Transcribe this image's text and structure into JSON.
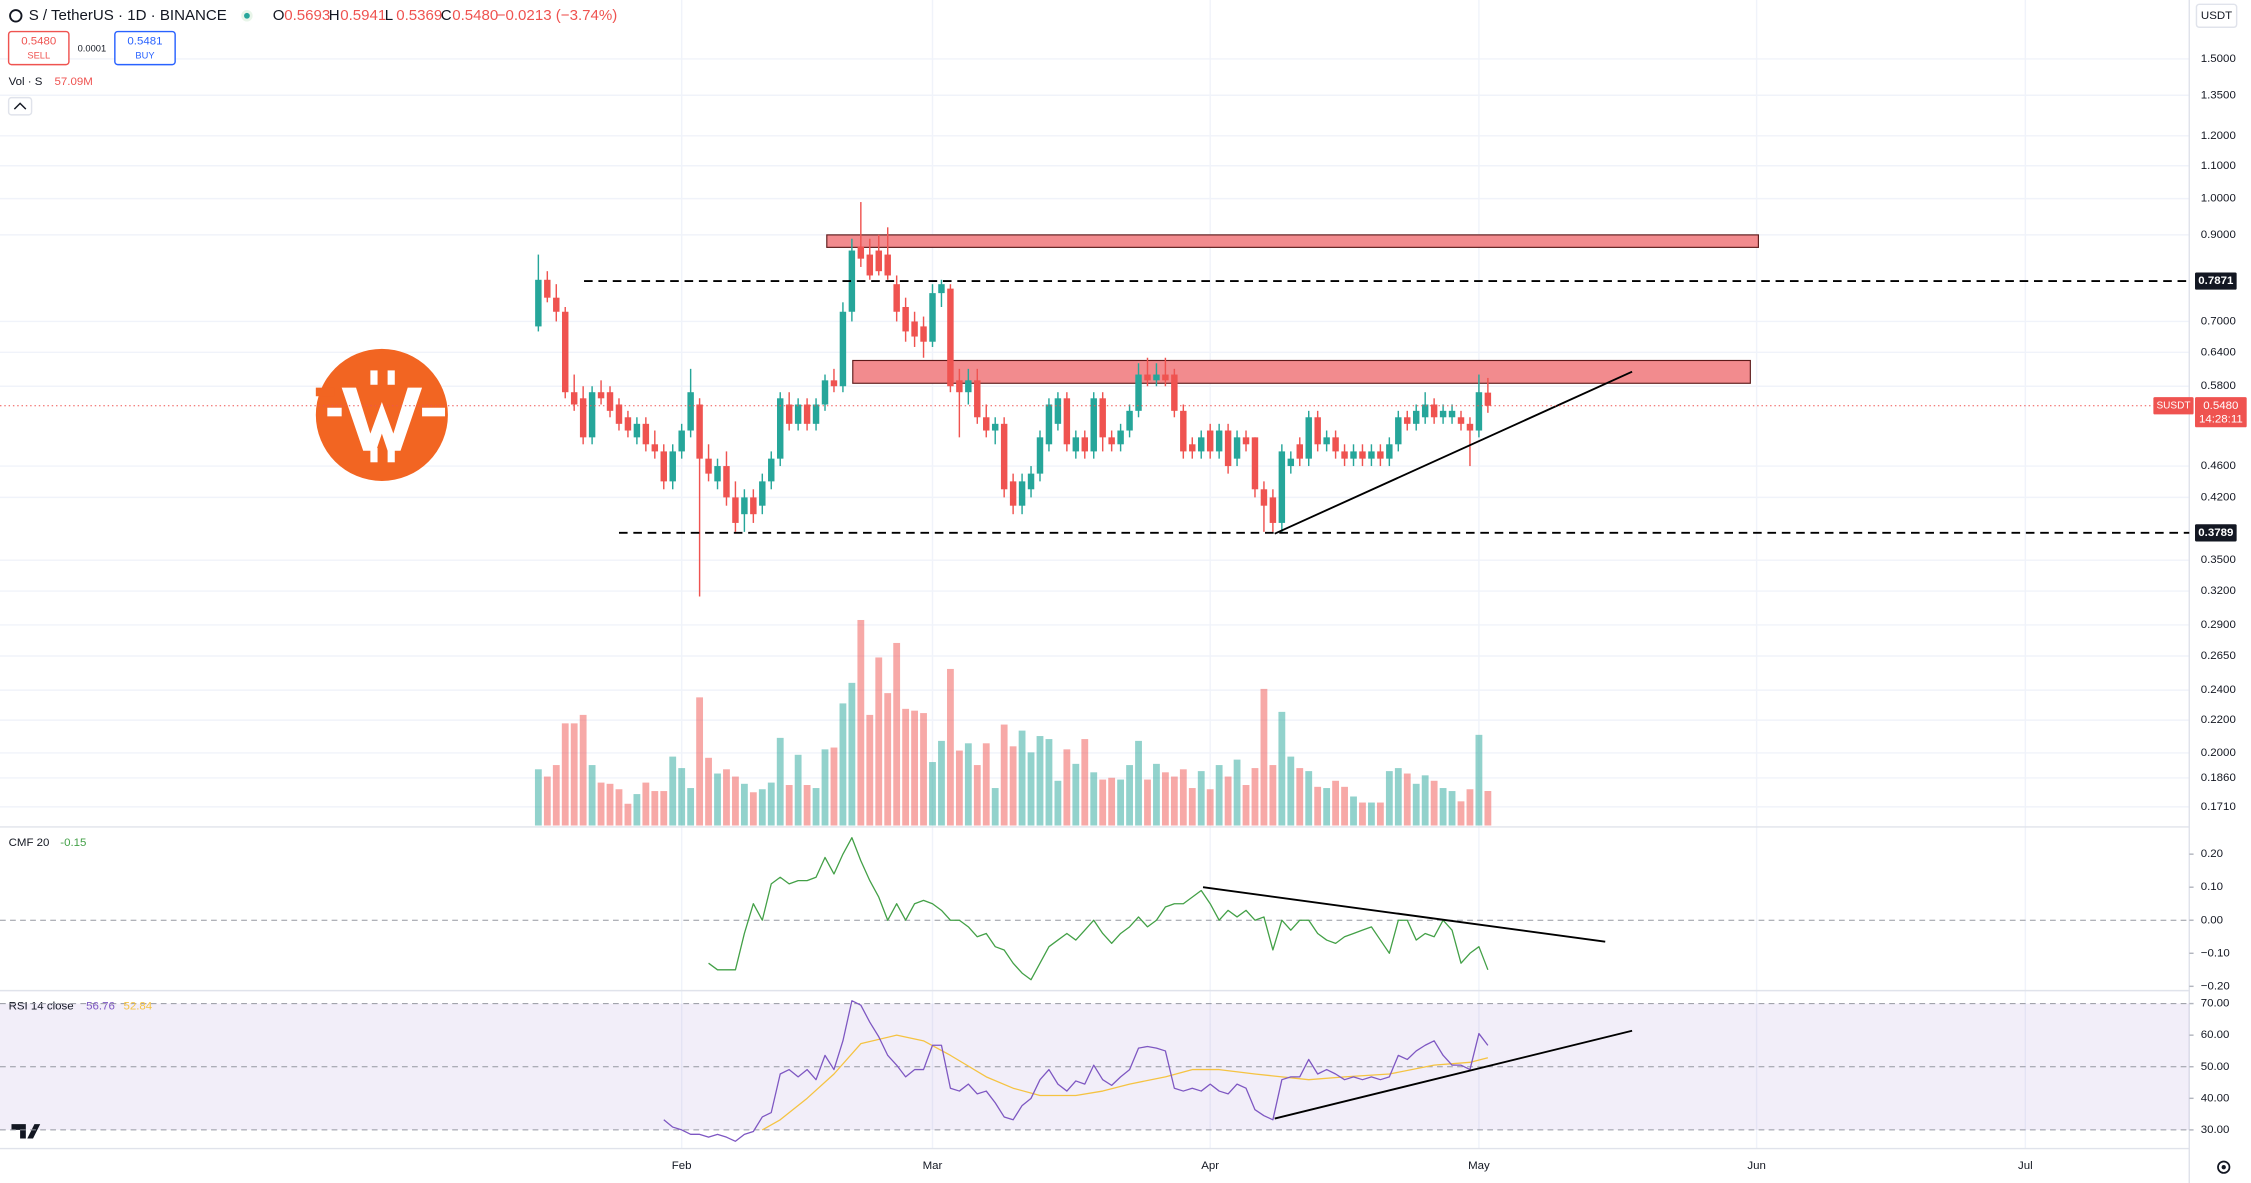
{
  "chart_data": {
    "type": "candlestick",
    "header": {
      "symbol": "S / TetherUS · 1D · BINANCE",
      "ohlc_prefixes": [
        "O",
        "H",
        "L",
        "C"
      ],
      "ohlc_labels": [
        "0.5693",
        "0.5941",
        "0.5369",
        "0.5480"
      ],
      "change": "−0.0213 (−3.74%)",
      "sell_price": "0.5480",
      "sell": "SELL",
      "spread": "0.0001",
      "buy_price": "0.5481",
      "buy": "BUY"
    },
    "currency": "USDT",
    "xlim": [
      -60.1,
      184.3
    ],
    "xticks": [
      {
        "value": 16,
        "label": "Feb"
      },
      {
        "value": 44,
        "label": "Mar"
      },
      {
        "value": 75,
        "label": "Apr"
      },
      {
        "value": 105,
        "label": "May"
      },
      {
        "value": 136,
        "label": "Jun"
      },
      {
        "value": 166,
        "label": "Jul"
      }
    ],
    "ylim": [
      0.162,
      1.78
    ],
    "log_scale": true,
    "grid": true,
    "yticks": [
      {
        "value": 1.5,
        "label": "1.5000"
      },
      {
        "value": 1.35,
        "label": "1.3500"
      },
      {
        "value": 1.2,
        "label": "1.2000"
      },
      {
        "value": 1.1,
        "label": "1.1000"
      },
      {
        "value": 1,
        "label": "1.0000"
      },
      {
        "value": 0.9,
        "label": "0.9000"
      },
      {
        "value": 0.7,
        "label": "0.7000"
      },
      {
        "value": 0.64,
        "label": "0.6400"
      },
      {
        "value": 0.58,
        "label": "0.5800"
      },
      {
        "value": 0.46,
        "label": "0.4600"
      },
      {
        "value": 0.42,
        "label": "0.4200"
      },
      {
        "value": 0.35,
        "label": "0.3500"
      },
      {
        "value": 0.32,
        "label": "0.3200"
      },
      {
        "value": 0.29,
        "label": "0.2900"
      },
      {
        "value": 0.265,
        "label": "0.2650"
      },
      {
        "value": 0.24,
        "label": "0.2400"
      },
      {
        "value": 0.22,
        "label": "0.2200"
      },
      {
        "value": 0.2,
        "label": "0.2000"
      },
      {
        "value": 0.186,
        "label": "0.1860"
      },
      {
        "value": 0.171,
        "label": "0.1710"
      }
    ],
    "up_color": "#26a69a",
    "down_color": "#ef5350",
    "ohlc": [
      [
        0.69,
        0.85,
        0.68,
        0.79
      ],
      [
        0.79,
        0.81,
        0.74,
        0.75
      ],
      [
        0.75,
        0.78,
        0.7,
        0.72
      ],
      [
        0.72,
        0.73,
        0.56,
        0.57
      ],
      [
        0.57,
        0.6,
        0.54,
        0.55
      ],
      [
        0.56,
        0.58,
        0.49,
        0.5
      ],
      [
        0.5,
        0.58,
        0.49,
        0.57
      ],
      [
        0.57,
        0.59,
        0.55,
        0.56
      ],
      [
        0.57,
        0.58,
        0.53,
        0.54
      ],
      [
        0.55,
        0.56,
        0.51,
        0.52
      ],
      [
        0.53,
        0.54,
        0.5,
        0.51
      ],
      [
        0.5,
        0.53,
        0.49,
        0.52
      ],
      [
        0.52,
        0.53,
        0.48,
        0.49
      ],
      [
        0.49,
        0.51,
        0.47,
        0.48
      ],
      [
        0.48,
        0.49,
        0.43,
        0.44
      ],
      [
        0.44,
        0.49,
        0.43,
        0.48
      ],
      [
        0.48,
        0.52,
        0.47,
        0.51
      ],
      [
        0.51,
        0.61,
        0.5,
        0.57
      ],
      [
        0.55,
        0.56,
        0.315,
        0.47
      ],
      [
        0.47,
        0.49,
        0.44,
        0.45
      ],
      [
        0.44,
        0.47,
        0.43,
        0.46
      ],
      [
        0.46,
        0.48,
        0.41,
        0.42
      ],
      [
        0.42,
        0.44,
        0.38,
        0.39
      ],
      [
        0.4,
        0.43,
        0.38,
        0.42
      ],
      [
        0.42,
        0.43,
        0.39,
        0.4
      ],
      [
        0.41,
        0.45,
        0.4,
        0.44
      ],
      [
        0.44,
        0.48,
        0.43,
        0.47
      ],
      [
        0.47,
        0.57,
        0.46,
        0.56
      ],
      [
        0.55,
        0.57,
        0.51,
        0.52
      ],
      [
        0.52,
        0.56,
        0.51,
        0.55
      ],
      [
        0.55,
        0.56,
        0.51,
        0.52
      ],
      [
        0.52,
        0.56,
        0.51,
        0.55
      ],
      [
        0.55,
        0.6,
        0.54,
        0.59
      ],
      [
        0.59,
        0.61,
        0.57,
        0.58
      ],
      [
        0.58,
        0.74,
        0.57,
        0.72
      ],
      [
        0.72,
        0.89,
        0.7,
        0.86
      ],
      [
        0.87,
        0.99,
        0.82,
        0.84
      ],
      [
        0.85,
        0.89,
        0.79,
        0.8
      ],
      [
        0.86,
        0.9,
        0.8,
        0.81
      ],
      [
        0.85,
        0.92,
        0.79,
        0.8
      ],
      [
        0.78,
        0.8,
        0.7,
        0.72
      ],
      [
        0.73,
        0.75,
        0.66,
        0.68
      ],
      [
        0.7,
        0.72,
        0.65,
        0.67
      ],
      [
        0.69,
        0.71,
        0.63,
        0.66
      ],
      [
        0.66,
        0.78,
        0.65,
        0.76
      ],
      [
        0.76,
        0.79,
        0.73,
        0.78
      ],
      [
        0.77,
        0.78,
        0.57,
        0.58
      ],
      [
        0.59,
        0.61,
        0.5,
        0.57
      ],
      [
        0.57,
        0.61,
        0.55,
        0.59
      ],
      [
        0.59,
        0.61,
        0.52,
        0.53
      ],
      [
        0.53,
        0.55,
        0.5,
        0.51
      ],
      [
        0.51,
        0.53,
        0.49,
        0.52
      ],
      [
        0.52,
        0.53,
        0.42,
        0.43
      ],
      [
        0.44,
        0.45,
        0.4,
        0.41
      ],
      [
        0.41,
        0.45,
        0.4,
        0.44
      ],
      [
        0.43,
        0.46,
        0.42,
        0.45
      ],
      [
        0.45,
        0.51,
        0.44,
        0.5
      ],
      [
        0.49,
        0.56,
        0.48,
        0.55
      ],
      [
        0.52,
        0.57,
        0.51,
        0.56
      ],
      [
        0.56,
        0.57,
        0.48,
        0.49
      ],
      [
        0.48,
        0.51,
        0.47,
        0.5
      ],
      [
        0.5,
        0.51,
        0.47,
        0.48
      ],
      [
        0.48,
        0.57,
        0.47,
        0.56
      ],
      [
        0.56,
        0.57,
        0.48,
        0.5
      ],
      [
        0.5,
        0.51,
        0.48,
        0.49
      ],
      [
        0.49,
        0.52,
        0.48,
        0.51
      ],
      [
        0.51,
        0.55,
        0.5,
        0.54
      ],
      [
        0.54,
        0.62,
        0.53,
        0.6
      ],
      [
        0.6,
        0.63,
        0.58,
        0.59
      ],
      [
        0.59,
        0.62,
        0.58,
        0.6
      ],
      [
        0.6,
        0.63,
        0.58,
        0.59
      ],
      [
        0.6,
        0.61,
        0.53,
        0.54
      ],
      [
        0.54,
        0.55,
        0.47,
        0.48
      ],
      [
        0.49,
        0.5,
        0.47,
        0.48
      ],
      [
        0.48,
        0.51,
        0.47,
        0.5
      ],
      [
        0.51,
        0.52,
        0.47,
        0.48
      ],
      [
        0.48,
        0.52,
        0.47,
        0.51
      ],
      [
        0.51,
        0.52,
        0.45,
        0.46
      ],
      [
        0.47,
        0.51,
        0.46,
        0.5
      ],
      [
        0.5,
        0.51,
        0.48,
        0.49
      ],
      [
        0.5,
        0.5,
        0.42,
        0.43
      ],
      [
        0.43,
        0.44,
        0.38,
        0.41
      ],
      [
        0.42,
        0.43,
        0.38,
        0.39
      ],
      [
        0.39,
        0.49,
        0.38,
        0.48
      ],
      [
        0.46,
        0.48,
        0.45,
        0.47
      ],
      [
        0.49,
        0.5,
        0.46,
        0.47
      ],
      [
        0.47,
        0.54,
        0.46,
        0.53
      ],
      [
        0.53,
        0.54,
        0.48,
        0.49
      ],
      [
        0.49,
        0.51,
        0.48,
        0.5
      ],
      [
        0.5,
        0.51,
        0.47,
        0.48
      ],
      [
        0.48,
        0.49,
        0.46,
        0.47
      ],
      [
        0.47,
        0.49,
        0.46,
        0.48
      ],
      [
        0.48,
        0.49,
        0.46,
        0.47
      ],
      [
        0.47,
        0.49,
        0.46,
        0.48
      ],
      [
        0.48,
        0.49,
        0.46,
        0.47
      ],
      [
        0.47,
        0.5,
        0.46,
        0.49
      ],
      [
        0.49,
        0.54,
        0.48,
        0.53
      ],
      [
        0.53,
        0.54,
        0.51,
        0.52
      ],
      [
        0.52,
        0.55,
        0.51,
        0.54
      ],
      [
        0.53,
        0.57,
        0.52,
        0.55
      ],
      [
        0.55,
        0.56,
        0.52,
        0.53
      ],
      [
        0.53,
        0.55,
        0.52,
        0.54
      ],
      [
        0.53,
        0.55,
        0.52,
        0.54
      ],
      [
        0.53,
        0.54,
        0.51,
        0.52
      ],
      [
        0.52,
        0.53,
        0.46,
        0.51
      ],
      [
        0.51,
        0.6,
        0.5,
        0.57
      ],
      [
        0.5693,
        0.5941,
        0.5369,
        0.548
      ]
    ],
    "last_price": {
      "symbol": "SUSDT",
      "value": 0.548,
      "label": "0.5480",
      "countdown": "14:28:11"
    },
    "levels": [
      {
        "value": 0.7871,
        "label": "0.7871",
        "from": 5.1
      },
      {
        "value": 0.3789,
        "label": "0.3789",
        "from": 9
      }
    ],
    "zones": [
      {
        "from": 32.2,
        "to": 136.2,
        "top": 0.9,
        "bottom": 0.868
      },
      {
        "from": 35.1,
        "to": 135.3,
        "top": 0.625,
        "bottom": 0.585
      }
    ],
    "trendline": {
      "x": [
        82.2,
        122.1
      ],
      "values": [
        0.378,
        0.605
      ]
    },
    "volume": {
      "name": "Vol · S",
      "last_label": "57.09M",
      "ylim": [
        0,
        380
      ],
      "values": [
        93,
        81,
        100,
        169,
        169,
        183,
        100,
        71,
        69,
        60,
        36,
        52,
        71,
        57,
        57,
        114,
        95,
        62,
        212,
        112,
        86,
        93,
        81,
        69,
        55,
        60,
        71,
        145,
        67,
        117,
        67,
        62,
        126,
        129,
        202,
        236,
        340,
        183,
        278,
        219,
        302,
        193,
        190,
        186,
        105,
        140,
        259,
        124,
        136,
        100,
        136,
        62,
        167,
        131,
        157,
        121,
        148,
        143,
        74,
        126,
        102,
        143,
        88,
        76,
        79,
        76,
        100,
        140,
        76,
        102,
        88,
        81,
        93,
        62,
        90,
        60,
        100,
        81,
        109,
        67,
        95,
        226,
        100,
        188,
        114,
        95,
        90,
        64,
        62,
        74,
        64,
        48,
        38,
        38,
        38,
        90,
        95,
        86,
        69,
        83,
        74,
        62,
        57,
        40,
        60,
        150,
        57.09
      ]
    },
    "cmf": {
      "name": "CMF 20",
      "color": "#43a047",
      "ylim": [
        -0.213,
        0.278
      ],
      "zero": 0,
      "yticks": [
        {
          "value": 0.2,
          "label": "0.20"
        },
        {
          "value": 0.1,
          "label": "0.10"
        },
        {
          "value": 0,
          "label": "0.00"
        },
        {
          "value": -0.1,
          "label": "−0.10"
        },
        {
          "value": -0.2,
          "label": "−0.20"
        }
      ],
      "values": [
        null,
        null,
        null,
        null,
        null,
        null,
        null,
        null,
        null,
        null,
        null,
        null,
        null,
        null,
        null,
        null,
        null,
        null,
        null,
        -0.13,
        -0.15,
        -0.15,
        -0.15,
        -0.04,
        0.05,
        0,
        0.11,
        0.13,
        0.11,
        0.12,
        0.12,
        0.13,
        0.19,
        0.14,
        0.2,
        0.25,
        0.18,
        0.12,
        0.07,
        0,
        0.05,
        0,
        0.05,
        0.06,
        0.05,
        0.03,
        0,
        0,
        -0.02,
        -0.05,
        -0.04,
        -0.08,
        -0.09,
        -0.13,
        -0.16,
        -0.18,
        -0.13,
        -0.08,
        -0.06,
        -0.04,
        -0.06,
        -0.03,
        0,
        -0.04,
        -0.07,
        -0.04,
        -0.02,
        0.01,
        -0.02,
        0,
        0.04,
        0.05,
        0.05,
        0.07,
        0.09,
        0.05,
        0,
        0.03,
        0.01,
        0.03,
        0,
        0.01,
        -0.09,
        0,
        -0.03,
        0,
        0,
        -0.04,
        -0.06,
        -0.07,
        -0.05,
        -0.04,
        -0.03,
        -0.02,
        -0.06,
        -0.1,
        0,
        0,
        -0.06,
        -0.04,
        -0.05,
        0,
        -0.03,
        -0.13,
        -0.1,
        -0.08,
        -0.15
      ],
      "trendline": {
        "x": [
          74.2,
          119.1
        ],
        "values": [
          0.1,
          -0.065
        ]
      }
    },
    "rsi": {
      "name": "RSI 14 close",
      "color": "#7e57c2",
      "ylim": [
        24.1,
        74.1
      ],
      "band": [
        30,
        70
      ],
      "mid": 50,
      "yticks": [
        {
          "value": 70,
          "label": "70.00"
        },
        {
          "value": 60,
          "label": "60.00"
        },
        {
          "value": 50,
          "label": "50.00"
        },
        {
          "value": 40,
          "label": "40.00"
        },
        {
          "value": 30,
          "label": "30.00"
        }
      ],
      "values": [
        null,
        null,
        null,
        null,
        null,
        null,
        null,
        null,
        null,
        null,
        null,
        null,
        null,
        null,
        33.2,
        30.9,
        30.0,
        28.6,
        28.6,
        27.7,
        28.6,
        27.7,
        26.4,
        28.6,
        29.5,
        34.1,
        35.5,
        47.7,
        49.1,
        46.8,
        49.1,
        45.9,
        53.6,
        49.1,
        58.2,
        70.9,
        69.5,
        64.1,
        59.5,
        53.6,
        50.5,
        46.8,
        49.1,
        49.1,
        56.8,
        56.8,
        43.2,
        42.3,
        44.5,
        41.4,
        42.3,
        38.6,
        34.1,
        33.2,
        37.7,
        40.0,
        45.9,
        49.1,
        44.5,
        42.3,
        45.5,
        44.5,
        50.5,
        45.9,
        44.1,
        46.8,
        49.1,
        55.9,
        56.4,
        55.9,
        55.0,
        43.2,
        42.3,
        43.2,
        42.3,
        44.5,
        42.3,
        41.4,
        44.5,
        43.2,
        36.4,
        34.5,
        33.2,
        45.9,
        46.8,
        46.8,
        52.3,
        47.7,
        49.1,
        47.7,
        45.9,
        46.8,
        45.9,
        46.8,
        45.9,
        46.8,
        53.6,
        52.3,
        55.0,
        56.8,
        58.2,
        53.6,
        50.5,
        50.5,
        49.1,
        60.5,
        56.76
      ],
      "ma": {
        "color": "#f5c342",
        "x": [
          25,
          27,
          30,
          33,
          36,
          40,
          43,
          46,
          50,
          53,
          56,
          60,
          63,
          66,
          70,
          73,
          76,
          80,
          83,
          86,
          90,
          95,
          100,
          104,
          106
        ],
        "values": [
          30,
          33.2,
          40,
          47.7,
          57.3,
          60,
          58.2,
          53.6,
          46.8,
          43.2,
          40.9,
          40.9,
          42.3,
          44.5,
          46.8,
          49.1,
          49.1,
          47.7,
          46.8,
          45.9,
          46.8,
          47.7,
          50.5,
          51.4,
          52.84
        ]
      },
      "trendline": {
        "x": [
          82.2,
          122.1
        ],
        "values": [
          33.6,
          61.4
        ]
      }
    }
  }
}
